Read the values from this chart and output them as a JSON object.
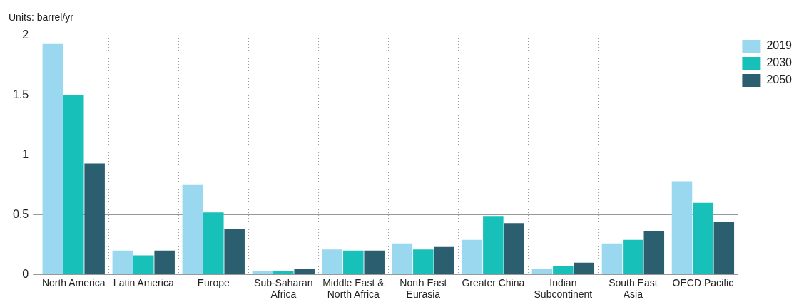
{
  "chart_data": {
    "type": "bar",
    "ylabel": "Units: barrel/yr",
    "categories": [
      "North America",
      "Latin America",
      "Europe",
      "Sub-Saharan Africa",
      "Middle East & North Africa",
      "North East Eurasia",
      "Greater China",
      "Indian Subcontinent",
      "South East Asia",
      "OECD Pacific"
    ],
    "series": [
      {
        "name": "2019",
        "color": "#99d8ee",
        "values": [
          1.93,
          0.2,
          0.75,
          0.03,
          0.21,
          0.26,
          0.29,
          0.05,
          0.26,
          0.78
        ]
      },
      {
        "name": "2030",
        "color": "#17c0b8",
        "values": [
          1.5,
          0.16,
          0.52,
          0.03,
          0.2,
          0.21,
          0.49,
          0.07,
          0.29,
          0.6
        ]
      },
      {
        "name": "2050",
        "color": "#2b5f70",
        "values": [
          0.93,
          0.2,
          0.38,
          0.05,
          0.2,
          0.23,
          0.43,
          0.1,
          0.36,
          0.44
        ]
      }
    ],
    "ylim": [
      0,
      2
    ],
    "yticks": [
      0,
      0.5,
      1,
      1.5,
      2
    ],
    "grid": true,
    "legend": "top right"
  }
}
